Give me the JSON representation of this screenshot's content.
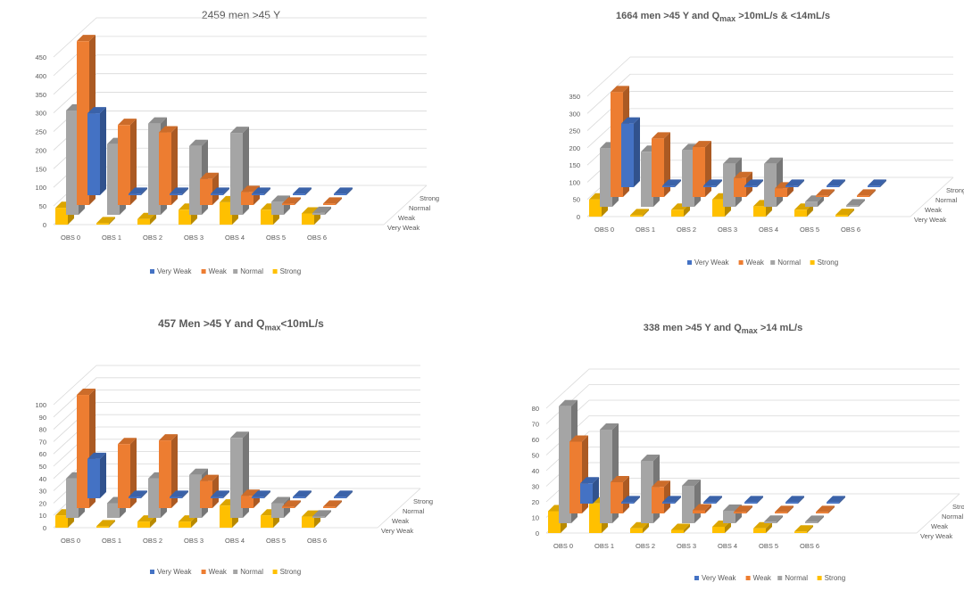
{
  "charts": [
    {
      "title_main": "2459 men >45 Y",
      "title_sub": "",
      "title_rest": ""
    },
    {
      "title_main": "1664 men >45 Y and Q",
      "title_sub": "max",
      "title_rest": " >10mL/s & <14mL/s"
    },
    {
      "title_main": "457 Men >45 Y and Q",
      "title_sub": "max",
      "title_rest": "<10mL/s"
    },
    {
      "title_main": "338 men >45 Y and Q",
      "title_sub": "max",
      "title_rest": " >14 mL/s"
    }
  ],
  "colors": {
    "Very Weak": "#4472c4",
    "Weak": "#ed7d31",
    "Normal": "#a5a5a5",
    "Strong": "#ffc000"
  },
  "chart_data": [
    {
      "type": "bar",
      "title": "2459 men >45 Y",
      "categories": [
        "OBS 0",
        "OBS 1",
        "OBS 2",
        "OBS 3",
        "OBS 4",
        "OBS 5",
        "OBS 6"
      ],
      "series": [
        {
          "name": "Very Weak",
          "values": [
            220,
            0,
            0,
            0,
            0,
            0,
            0
          ]
        },
        {
          "name": "Weak",
          "values": [
            440,
            215,
            195,
            70,
            35,
            0,
            0
          ]
        },
        {
          "name": "Normal",
          "values": [
            280,
            190,
            245,
            185,
            220,
            35,
            5
          ]
        },
        {
          "name": "Strong",
          "values": [
            45,
            0,
            15,
            40,
            60,
            40,
            30
          ]
        }
      ],
      "ylim": [
        0,
        450
      ],
      "yticks": [
        0,
        50,
        100,
        150,
        200,
        250,
        300,
        350,
        400,
        450
      ],
      "grid": true,
      "legend": "bottom"
    },
    {
      "type": "bar",
      "title": "1664 men >45 Y and Qmax >10mL/s & <14mL/s",
      "categories": [
        "OBS 0",
        "OBS 1",
        "OBS 2",
        "OBS 3",
        "OBS 4",
        "OBS 5",
        "OBS 6"
      ],
      "series": [
        {
          "name": "Very Weak",
          "values": [
            185,
            0,
            0,
            0,
            0,
            0,
            0
          ]
        },
        {
          "name": "Weak",
          "values": [
            305,
            170,
            145,
            55,
            25,
            0,
            0
          ]
        },
        {
          "name": "Normal",
          "values": [
            170,
            160,
            165,
            125,
            125,
            15,
            0
          ]
        },
        {
          "name": "Strong",
          "values": [
            50,
            0,
            20,
            50,
            30,
            20,
            5
          ]
        }
      ],
      "ylim": [
        0,
        350
      ],
      "yticks": [
        0,
        50,
        100,
        150,
        200,
        250,
        300,
        350
      ],
      "grid": true,
      "legend": "bottom"
    },
    {
      "type": "bar",
      "title": "457 Men >45 Y and Qmax<10mL/s",
      "categories": [
        "OBS 0",
        "OBS 1",
        "OBS 2",
        "OBS 3",
        "OBS 4",
        "OBS 5",
        "OBS 6"
      ],
      "series": [
        {
          "name": "Very Weak",
          "values": [
            32,
            0,
            0,
            0,
            0,
            0,
            0
          ]
        },
        {
          "name": "Weak",
          "values": [
            92,
            52,
            55,
            22,
            10,
            0,
            0
          ]
        },
        {
          "name": "Normal",
          "values": [
            32,
            12,
            32,
            35,
            65,
            12,
            0
          ]
        },
        {
          "name": "Strong",
          "values": [
            10,
            0,
            5,
            5,
            18,
            10,
            9
          ]
        }
      ],
      "ylim": [
        0,
        100
      ],
      "yticks": [
        0,
        10,
        20,
        30,
        40,
        50,
        60,
        70,
        80,
        90,
        100
      ],
      "grid": true,
      "legend": "bottom"
    },
    {
      "type": "bar",
      "title": "338 men >45 Y and Qmax >14 mL/s",
      "categories": [
        "OBS 0",
        "OBS 1",
        "OBS 2",
        "OBS 3",
        "OBS 4",
        "OBS 5",
        "OBS 6"
      ],
      "series": [
        {
          "name": "Very Weak",
          "values": [
            13,
            0,
            0,
            0,
            0,
            0,
            0
          ]
        },
        {
          "name": "Weak",
          "values": [
            46,
            20,
            17,
            2,
            1,
            0,
            0
          ]
        },
        {
          "name": "Normal",
          "values": [
            75,
            60,
            40,
            24,
            8,
            1,
            0
          ]
        },
        {
          "name": "Strong",
          "values": [
            14,
            19,
            3,
            2,
            4,
            3,
            1
          ]
        }
      ],
      "ylim": [
        0,
        80
      ],
      "yticks": [
        0,
        10,
        20,
        30,
        40,
        50,
        60,
        70,
        80
      ],
      "grid": true,
      "legend": "bottom"
    }
  ]
}
